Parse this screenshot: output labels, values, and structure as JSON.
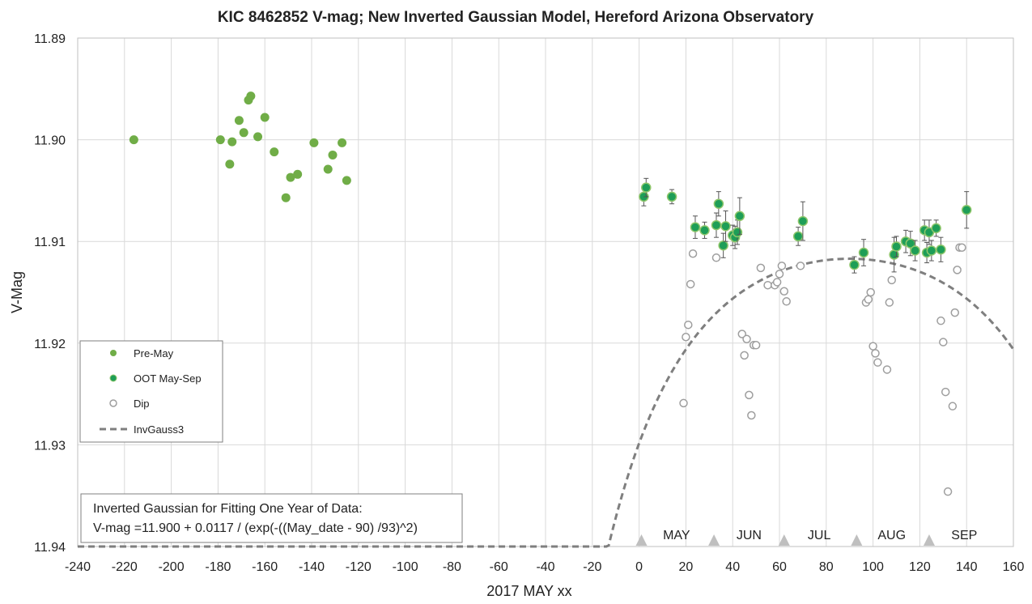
{
  "chart_data": {
    "type": "scatter",
    "title": "KIC 8462852 V-mag; New Inverted Gaussian Model, Hereford Arizona Observatory",
    "xlabel": "2017 MAY xx",
    "ylabel": "V-Mag",
    "xlim": [
      -240,
      160
    ],
    "ylim": [
      11.94,
      11.89
    ],
    "y_inverted": true,
    "grid": true,
    "x_ticks": [
      "-240",
      "-220",
      "-200",
      "-180",
      "-160",
      "-140",
      "-120",
      "-100",
      "-80",
      "-60",
      "-40",
      "-20",
      "0",
      "20",
      "40",
      "60",
      "80",
      "100",
      "120",
      "140",
      "160"
    ],
    "y_ticks": [
      "11.89",
      "11.90",
      "11.91",
      "11.92",
      "11.93",
      "11.94"
    ],
    "legend_position": "left-middle",
    "legend": [
      {
        "key": "pre",
        "label": "Pre-May"
      },
      {
        "key": "oot",
        "label": "OOT May-Sep"
      },
      {
        "key": "dip",
        "label": "Dip"
      },
      {
        "key": "model",
        "label": "InvGauss3"
      }
    ],
    "colors": {
      "pre": "#70ad47",
      "oot_fill": "#1e9e57",
      "oot_edge": "#8fc66b",
      "dip": "#9e9e9e",
      "model": "#7f7f7f",
      "grid": "#d9d9d9",
      "marker": "#bfbfbf"
    },
    "model": {
      "base": 11.9,
      "amplitude": 0.0117,
      "center": 90,
      "width": 93
    },
    "series": [
      {
        "key": "pre",
        "x": [
          -216,
          -179,
          -174,
          -175,
          -171,
          -169,
          -167,
          -166,
          -163,
          -160,
          -156,
          -151,
          -149,
          -146,
          -139,
          -133,
          -131,
          -127,
          -125
        ],
        "y": [
          11.9,
          11.9,
          11.9002,
          11.9024,
          11.8981,
          11.8993,
          11.8961,
          11.8957,
          11.8997,
          11.8978,
          11.9012,
          11.9057,
          11.9037,
          11.9034,
          11.9003,
          11.9029,
          11.9015,
          11.9003,
          11.904
        ]
      },
      {
        "key": "oot",
        "x": [
          2,
          3,
          14,
          24,
          28,
          33,
          34,
          36,
          37,
          40,
          41,
          42,
          43,
          68,
          70,
          92,
          96,
          109,
          110,
          114,
          116,
          118,
          122,
          123,
          124,
          125,
          127,
          129,
          140
        ],
        "y": [
          11.9056,
          11.9047,
          11.9056,
          11.9086,
          11.9089,
          11.9084,
          11.9063,
          11.9104,
          11.9085,
          11.9094,
          11.9096,
          11.9091,
          11.9075,
          11.9095,
          11.908,
          11.9123,
          11.9111,
          11.9113,
          11.9105,
          11.91,
          11.9102,
          11.9109,
          11.9089,
          11.9111,
          11.9091,
          11.9109,
          11.9087,
          11.9108,
          11.9069
        ],
        "err": [
          0.0009,
          0.0009,
          0.0007,
          0.0011,
          0.0008,
          0.0012,
          0.0012,
          0.0012,
          0.0015,
          0.001,
          0.0011,
          0.0012,
          0.0018,
          0.0009,
          0.0019,
          0.0008,
          0.0013,
          0.0017,
          0.001,
          0.0011,
          0.0012,
          0.001,
          0.001,
          0.001,
          0.0012,
          0.001,
          0.0008,
          0.0012,
          0.0018
        ]
      },
      {
        "key": "dip",
        "x": [
          19,
          20,
          21,
          22,
          23,
          33,
          44,
          45,
          46,
          47,
          48,
          49,
          50,
          52,
          55,
          58,
          59,
          60,
          61,
          62,
          63,
          69,
          97,
          98,
          99,
          100,
          101,
          102,
          106,
          107,
          108,
          129,
          130,
          131,
          132,
          134,
          135,
          136,
          137,
          138
        ],
        "y": [
          11.9259,
          11.9194,
          11.9182,
          11.9142,
          11.9112,
          11.9116,
          11.9191,
          11.9212,
          11.9196,
          11.9251,
          11.9271,
          11.9202,
          11.9202,
          11.9126,
          11.9143,
          11.9143,
          11.914,
          11.9132,
          11.9124,
          11.9149,
          11.9159,
          11.9124,
          11.916,
          11.9157,
          11.915,
          11.9203,
          11.921,
          11.9219,
          11.9226,
          11.916,
          11.9138,
          11.9178,
          11.9199,
          11.9248,
          11.9346,
          11.9262,
          11.917,
          11.9128,
          11.9106,
          11.9106
        ]
      }
    ],
    "month_markers": [
      {
        "label": "MAY",
        "tri_x": 1,
        "label_x": 16
      },
      {
        "label": "JUN",
        "tri_x": 32,
        "label_x": 47
      },
      {
        "label": "JUL",
        "tri_x": 62,
        "label_x": 77
      },
      {
        "label": "AUG",
        "tri_x": 93,
        "label_x": 108
      },
      {
        "label": "SEP",
        "tri_x": 124,
        "label_x": 139
      }
    ],
    "note_lines": [
      "Inverted Gaussian for Fitting One Year of Data:",
      "V-mag =11.900 + 0.0117 / (exp(-((May_date - 90) /93)^2)"
    ]
  }
}
